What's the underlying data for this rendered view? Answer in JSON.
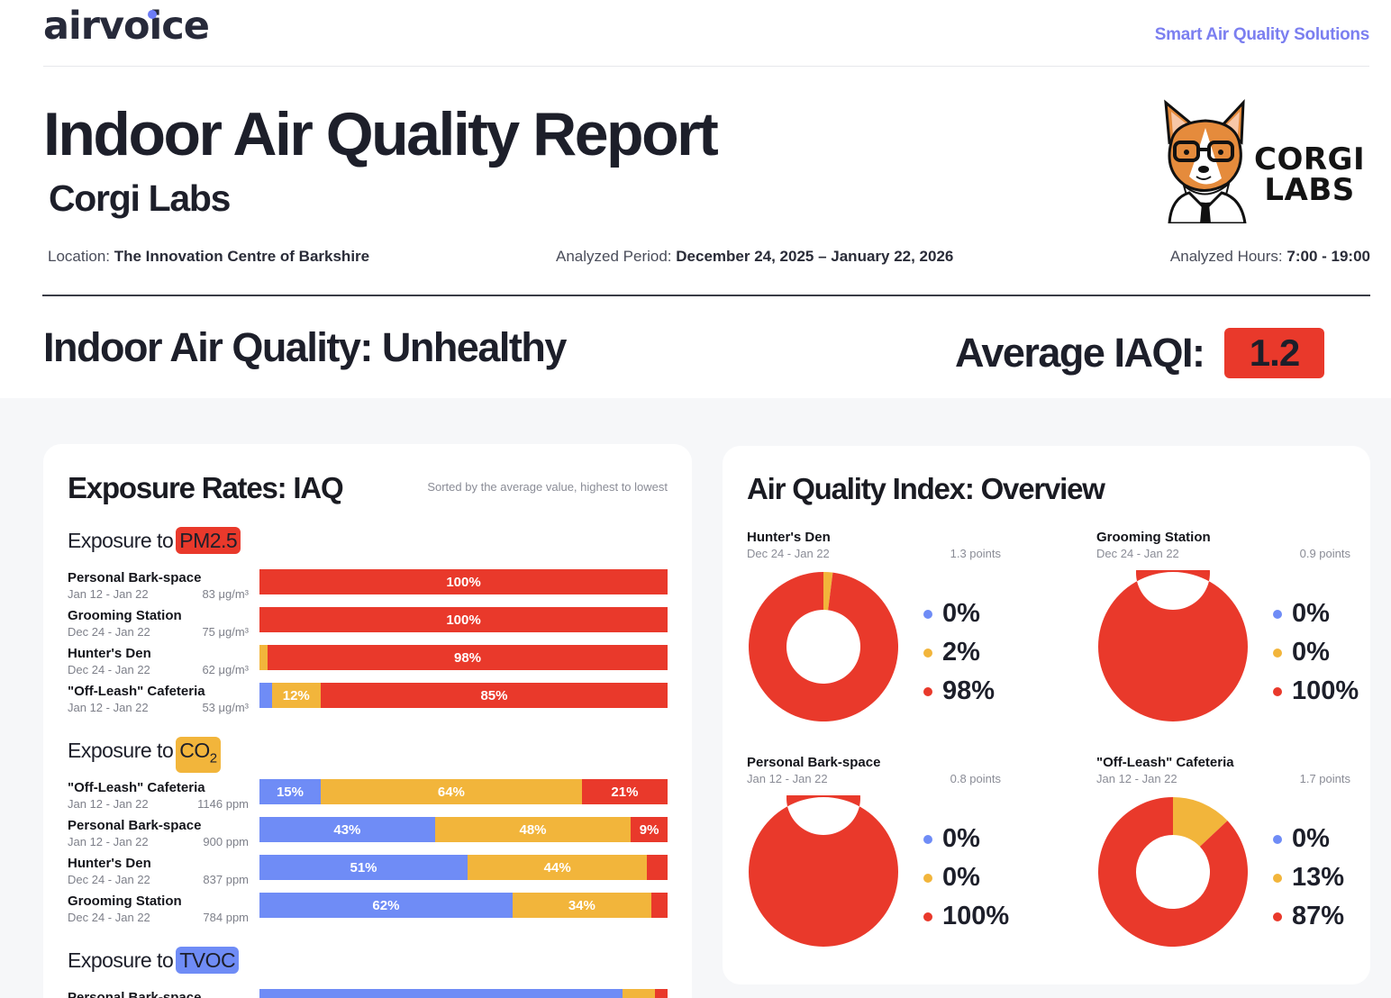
{
  "header": {
    "brand": "airvoice",
    "tagline": "Smart Air Quality Solutions",
    "title": "Indoor Air Quality Report",
    "subtitle": "Corgi Labs",
    "client_logo_line1": "CORGI",
    "client_logo_line2": "LABS",
    "location_label": "Location:",
    "location_value": "The Innovation Centre of Barkshire",
    "period_label": "Analyzed Period:",
    "period_value": "December 24, 2025 – January 22, 2026",
    "hours_label": "Analyzed Hours:",
    "hours_value": "7:00 - 19:00",
    "iaq_status": "Indoor Air Quality: Unhealthy",
    "iaq_avg_label": "Average IAQI:",
    "iaq_avg_value": "1.2"
  },
  "colors": {
    "good": "#6f8cf6",
    "moderate": "#f2b53b",
    "unhealthy": "#e9392b",
    "accent": "#7b7ff0"
  },
  "exposure": {
    "title": "Exposure Rates: IAQ",
    "note": "Sorted by the average value, highest to lowest",
    "sections": [
      {
        "prefix": "Exposure to",
        "pollutant": "PM2.5",
        "pill_color": "#e9392b",
        "rows": [
          {
            "name": "Personal Bark-space",
            "date": "Jan 12 - Jan 22",
            "value": "83 μg/m³",
            "good": 0,
            "moderate": 0,
            "unhealthy": 100,
            "labels": [
              "",
              "",
              "100%"
            ]
          },
          {
            "name": "Grooming Station",
            "date": "Dec 24 - Jan 22",
            "value": "75 μg/m³",
            "good": 0,
            "moderate": 0,
            "unhealthy": 100,
            "labels": [
              "",
              "",
              "100%"
            ]
          },
          {
            "name": "Hunter's Den",
            "date": "Dec 24 - Jan 22",
            "value": "62 μg/m³",
            "good": 0,
            "moderate": 2,
            "unhealthy": 98,
            "labels": [
              "",
              "",
              "98%"
            ]
          },
          {
            "name": "\"Off-Leash\" Cafeteria",
            "date": "Jan 12 - Jan 22",
            "value": "53 μg/m³",
            "good": 3,
            "moderate": 12,
            "unhealthy": 85,
            "labels": [
              "",
              "12%",
              "85%"
            ]
          }
        ]
      },
      {
        "prefix": "Exposure to",
        "pollutant": "CO",
        "pollutant_sub": "2",
        "pill_color": "#f2b53b",
        "rows": [
          {
            "name": "\"Off-Leash\" Cafeteria",
            "date": "Jan 12 - Jan 22",
            "value": "1146 ppm",
            "good": 15,
            "moderate": 64,
            "unhealthy": 21,
            "labels": [
              "15%",
              "64%",
              "21%"
            ]
          },
          {
            "name": "Personal Bark-space",
            "date": "Jan 12 - Jan 22",
            "value": "900 ppm",
            "good": 43,
            "moderate": 48,
            "unhealthy": 9,
            "labels": [
              "43%",
              "48%",
              "9%"
            ]
          },
          {
            "name": "Hunter's Den",
            "date": "Dec 24 - Jan 22",
            "value": "837 ppm",
            "good": 51,
            "moderate": 44,
            "unhealthy": 5,
            "labels": [
              "51%",
              "44%",
              ""
            ]
          },
          {
            "name": "Grooming Station",
            "date": "Dec 24 - Jan 22",
            "value": "784 ppm",
            "good": 62,
            "moderate": 34,
            "unhealthy": 4,
            "labels": [
              "62%",
              "34%",
              ""
            ]
          }
        ]
      },
      {
        "prefix": "Exposure to",
        "pollutant": "TVOC",
        "pill_color": "#6f8cf6",
        "rows": [
          {
            "name": "Personal Bark-space",
            "date": "",
            "value": "",
            "good": 89,
            "moderate": 8,
            "unhealthy": 3,
            "labels": [
              "",
              "",
              ""
            ]
          }
        ]
      }
    ]
  },
  "overview": {
    "title": "Air Quality Index: Overview",
    "donuts": [
      {
        "name": "Hunter's Den",
        "date": "Dec 24 - Jan 22",
        "points": "1.3 points",
        "good": 0,
        "moderate": 2,
        "unhealthy": 98,
        "labels": [
          "0%",
          "2%",
          "98%"
        ]
      },
      {
        "name": "Grooming Station",
        "date": "Dec 24 - Jan 22",
        "points": "0.9 points",
        "good": 0,
        "moderate": 0,
        "unhealthy": 100,
        "labels": [
          "0%",
          "0%",
          "100%"
        ]
      },
      {
        "name": "Personal Bark-space",
        "date": "Jan 12 - Jan 22",
        "points": "0.8 points",
        "good": 0,
        "moderate": 0,
        "unhealthy": 100,
        "labels": [
          "0%",
          "0%",
          "100%"
        ]
      },
      {
        "name": "\"Off-Leash\" Cafeteria",
        "date": "Jan 12 - Jan 22",
        "points": "1.7 points",
        "good": 0,
        "moderate": 13,
        "unhealthy": 87,
        "labels": [
          "0%",
          "13%",
          "87%"
        ]
      }
    ]
  }
}
